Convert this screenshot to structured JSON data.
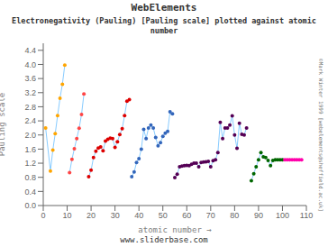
{
  "chart_data": {
    "type": "line",
    "marker": "circle",
    "title": "Electronegativity (Pauling) [Pauling scale] plotted against atomic\nnumber",
    "annotations": [
      "WebElements",
      "©Mark Winter 1999 [webelements@sheffield.ac.uk]",
      "www.sliderbase.com"
    ],
    "xlabel": "atomic number →",
    "ylabel": "Pauling scale",
    "xlim": [
      0,
      110
    ],
    "ylim": [
      0,
      4.6
    ],
    "xticks": [
      0,
      10,
      20,
      30,
      40,
      50,
      60,
      70,
      80,
      90,
      100,
      110
    ],
    "yticks": [
      {
        "value": 0,
        "label": "0.0"
      },
      0.4,
      0.8,
      1.2,
      1.6,
      {
        "value": 2.0,
        "label": "2.0"
      },
      2.4,
      2.8,
      3.2,
      3.6,
      {
        "value": 4.0,
        "label": "4.0"
      },
      4.4
    ],
    "grid": false,
    "series": [
      {
        "color": "#88ccff",
        "x": [
          1,
          3,
          4,
          5,
          6,
          7,
          8,
          9
        ],
        "values": [
          2.2,
          0.98,
          1.57,
          2.04,
          2.55,
          3.04,
          3.44,
          3.98
        ],
        "colors": [
          "orange",
          "orange",
          "orange",
          "orange",
          "orange",
          "orange",
          "orange",
          "orange"
        ]
      },
      {
        "color": "#88ccff",
        "x": [
          11,
          12,
          13,
          14,
          15,
          16,
          17
        ],
        "values": [
          0.93,
          1.31,
          1.61,
          1.9,
          2.19,
          2.58,
          3.16
        ],
        "colors": [
          "#ff4444",
          "#ff4444",
          "#ff4444",
          "#ff4444",
          "#ff4444",
          "#ff4444",
          "#ff4444"
        ]
      },
      {
        "color": "#88ccff",
        "x": [
          19,
          20,
          21,
          22,
          23,
          24,
          25,
          26,
          27,
          28,
          29,
          30,
          31,
          32,
          33,
          34,
          35,
          36
        ],
        "values": [
          0.82,
          1.0,
          1.36,
          1.54,
          1.63,
          1.66,
          1.55,
          1.83,
          1.88,
          1.91,
          1.9,
          1.65,
          1.81,
          2.01,
          2.18,
          2.55,
          2.96,
          3.0
        ],
        "colors": [
          "#dd0000",
          "#dd0000",
          "#dd0000",
          "#dd0000",
          "#dd0000",
          "#dd0000",
          "#dd0000",
          "#dd0000",
          "#dd0000",
          "#dd0000",
          "#dd0000",
          "#dd0000",
          "#dd0000",
          "#dd0000",
          "#dd0000",
          "#dd0000",
          "#dd0000",
          "#dd0000"
        ]
      },
      {
        "color": "#88ccff",
        "x": [
          37,
          38,
          39,
          40,
          41,
          42,
          43,
          44,
          45,
          46,
          47,
          48,
          49,
          50,
          51,
          52,
          53,
          54
        ],
        "values": [
          0.82,
          0.95,
          1.22,
          1.33,
          1.6,
          2.16,
          1.9,
          2.2,
          2.28,
          2.2,
          1.93,
          1.69,
          1.78,
          1.96,
          2.05,
          2.1,
          2.66,
          2.6
        ],
        "colors": [
          "#3366bb",
          "#3366bb",
          "#3366bb",
          "#3366bb",
          "#3366bb",
          "#3366bb",
          "#3366bb",
          "#3366bb",
          "#3366bb",
          "#3366bb",
          "#3366bb",
          "#3366bb",
          "#3366bb",
          "#3366bb",
          "#3366bb",
          "#3366bb",
          "#3366bb",
          "#3366bb"
        ]
      },
      {
        "color": "#88ccff",
        "x": [
          55,
          56,
          57,
          58,
          59,
          60,
          61,
          62,
          63,
          64,
          65,
          66,
          67,
          68,
          69,
          70,
          71,
          72,
          73,
          74,
          75,
          76,
          77,
          78,
          79,
          80,
          81,
          82,
          83,
          84,
          85
        ],
        "values": [
          0.79,
          0.89,
          1.1,
          1.12,
          1.13,
          1.14,
          1.13,
          1.17,
          1.2,
          1.2,
          1.1,
          1.22,
          1.23,
          1.24,
          1.25,
          1.1,
          1.27,
          1.3,
          1.5,
          2.36,
          1.9,
          2.2,
          2.2,
          2.28,
          2.54,
          2.0,
          1.62,
          2.33,
          2.02,
          2.0,
          2.2
        ],
        "colors": [
          "#550055",
          "#550055",
          "#550055",
          "#550055",
          "#550055",
          "#550055",
          "#550055",
          "#550055",
          "#550055",
          "#550055",
          "#550055",
          "#550055",
          "#550055",
          "#550055",
          "#550055",
          "#550055",
          "#550055",
          "#550055",
          "#550055",
          "#550055",
          "#550055",
          "#550055",
          "#550055",
          "#550055",
          "#550055",
          "#550055",
          "#550055",
          "#550055",
          "#550055",
          "#550055",
          "#550055"
        ]
      },
      {
        "color": "#88ccff",
        "x": [
          87,
          88,
          89,
          90,
          91,
          92,
          93,
          94,
          95,
          96,
          97,
          98,
          99,
          100
        ],
        "values": [
          0.7,
          0.9,
          1.1,
          1.3,
          1.5,
          1.38,
          1.36,
          1.28,
          1.13,
          1.28,
          1.3,
          1.3,
          1.3,
          1.3
        ],
        "colors": [
          "#006600",
          "#006600",
          "#006600",
          "#006600",
          "#006600",
          "#006600",
          "#006600",
          "#006600",
          "#006600",
          "#006600",
          "#006600",
          "#006600",
          "#006600",
          "#006600"
        ]
      },
      {
        "color": "#88ccff",
        "x": [
          101,
          102,
          103,
          104,
          105,
          106,
          107,
          108
        ],
        "values": [
          1.3,
          1.3,
          1.3,
          1.3,
          1.3,
          1.3,
          1.3,
          1.3
        ],
        "colors": [
          "#ff00aa",
          "#ff00aa",
          "#ff00aa",
          "#ff00aa",
          "#ff00aa",
          "#ff00aa",
          "#ff00aa",
          "#ff00aa"
        ]
      }
    ]
  }
}
